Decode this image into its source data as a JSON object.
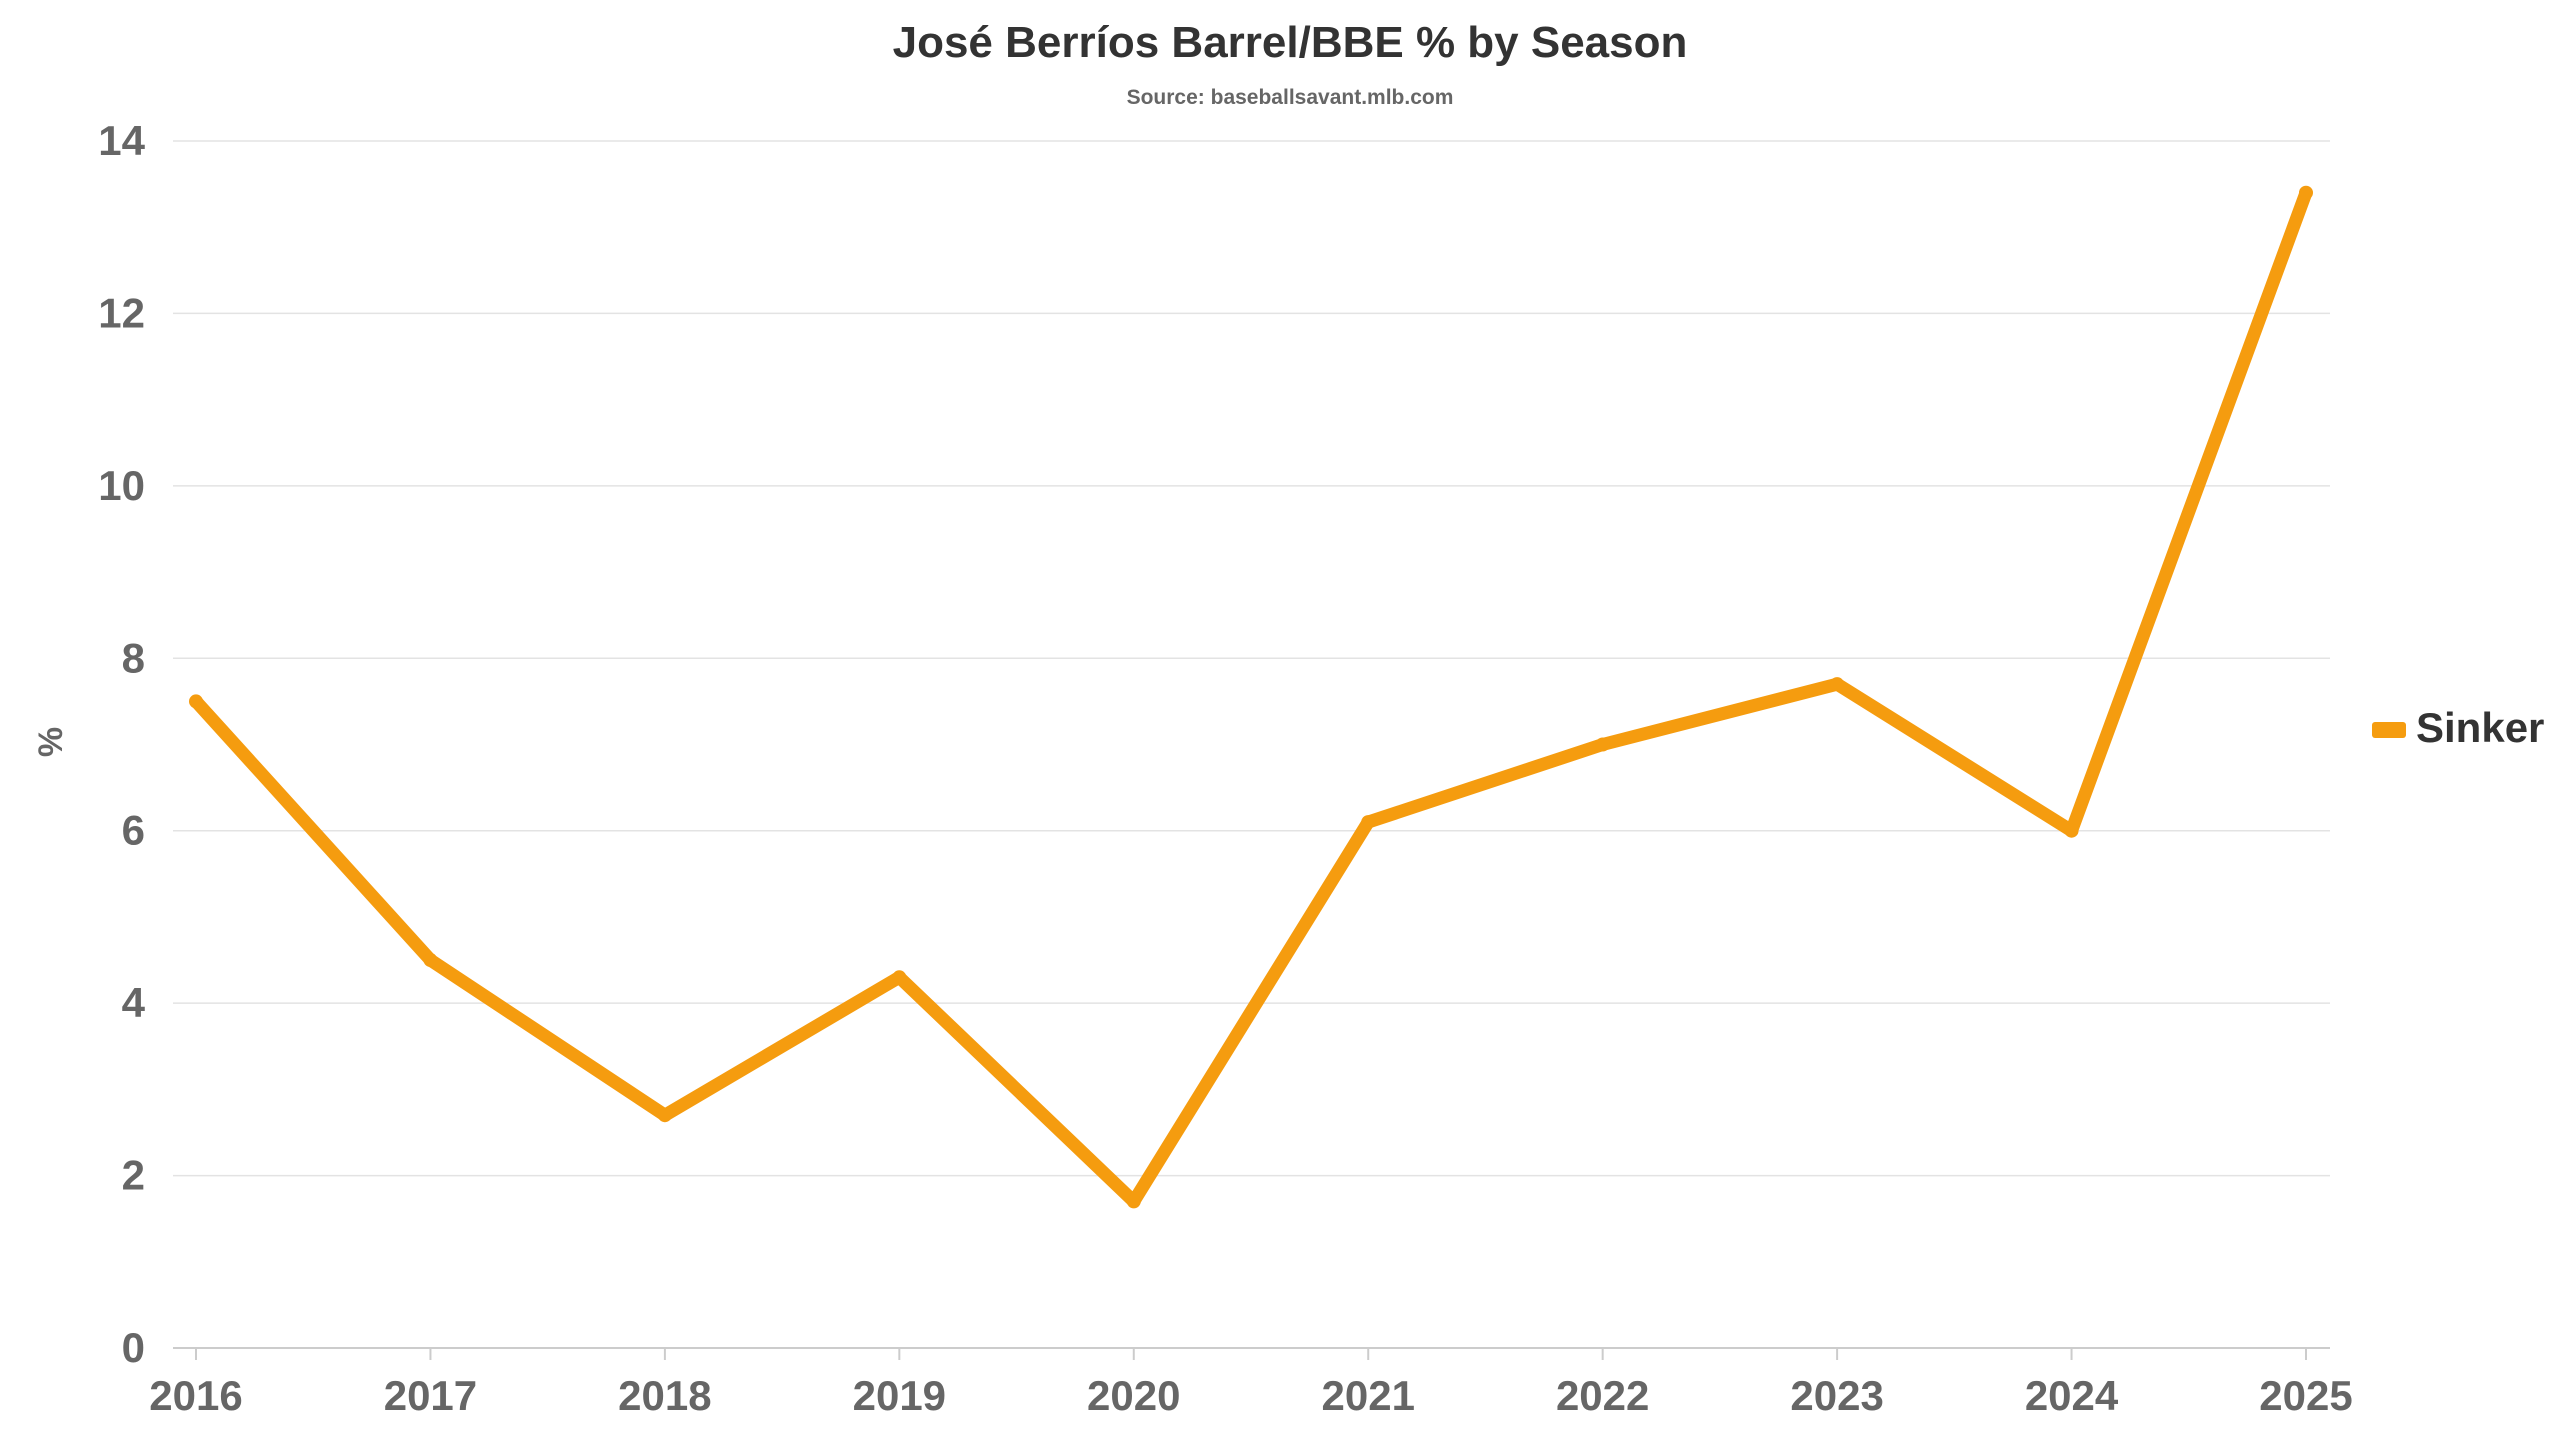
{
  "chart_data": {
    "type": "line",
    "title": "José Berríos Barrel/BBE % by Season",
    "subtitle": "Source: baseballsavant.mlb.com",
    "xlabel": "",
    "ylabel": "%",
    "x": [
      "2016",
      "2017",
      "2018",
      "2019",
      "2020",
      "2021",
      "2022",
      "2023",
      "2024",
      "2025"
    ],
    "ylim": [
      0,
      14
    ],
    "yticks": [
      "0",
      "2",
      "4",
      "6",
      "8",
      "10",
      "12",
      "14"
    ],
    "grid": true,
    "legend_position": "right",
    "series": [
      {
        "name": "Sinker",
        "color": "#f59c0f",
        "values": [
          7.5,
          4.5,
          2.7,
          4.3,
          1.7,
          6.1,
          7.0,
          7.7,
          6.0,
          13.4
        ]
      }
    ]
  },
  "colors": {
    "series": "#f59c0f",
    "grid": "#e3e3e3",
    "axis": "#cccccc",
    "tick_text": "#666666",
    "title_text": "#333333"
  }
}
